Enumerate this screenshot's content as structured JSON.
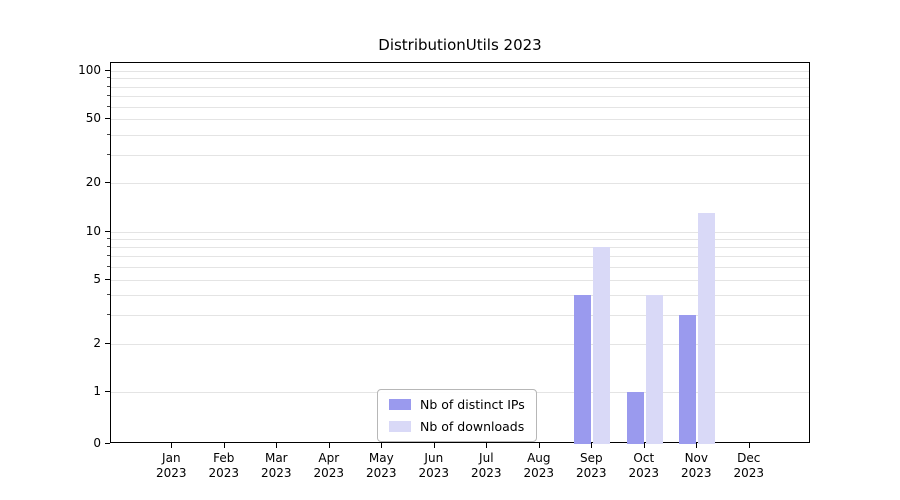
{
  "chart_data": {
    "type": "bar",
    "title": "DistributionUtils 2023",
    "categories": [
      "Jan",
      "Feb",
      "Mar",
      "Apr",
      "May",
      "Jun",
      "Jul",
      "Aug",
      "Sep",
      "Oct",
      "Nov",
      "Dec"
    ],
    "year": "2023",
    "series": [
      {
        "name": "Nb of distinct IPs",
        "color": "#9a9aee",
        "values": [
          0,
          0,
          0,
          0,
          0,
          0,
          0,
          0,
          4,
          1,
          3,
          0
        ]
      },
      {
        "name": "Nb of downloads",
        "color": "#d9d9f7",
        "values": [
          0,
          0,
          0,
          0,
          0,
          0,
          0,
          0,
          8,
          4,
          13,
          0
        ]
      }
    ],
    "yticks": [
      0,
      1,
      2,
      5,
      10,
      20,
      50,
      100
    ],
    "ylim": [
      0,
      110
    ],
    "scale": "symlog",
    "grid": "horizontal-minor-and-major",
    "legend_position": "lower-center",
    "gridline_color": "#e4e4e4"
  }
}
